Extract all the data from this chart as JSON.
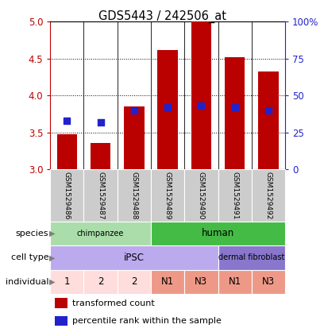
{
  "title": "GDS5443 / 242506_at",
  "samples": [
    "GSM1529486",
    "GSM1529487",
    "GSM1529488",
    "GSM1529489",
    "GSM1529490",
    "GSM1529491",
    "GSM1529492"
  ],
  "transformed_counts": [
    3.48,
    3.36,
    3.85,
    4.62,
    5.0,
    4.52,
    4.33
  ],
  "percentile_ranks": [
    33,
    32,
    40,
    42,
    43,
    42,
    40
  ],
  "ylim_left": [
    3.0,
    5.0
  ],
  "ylim_right": [
    0,
    100
  ],
  "yticks_left": [
    3.0,
    3.5,
    4.0,
    4.5,
    5.0
  ],
  "yticks_right": [
    0,
    25,
    50,
    75,
    100
  ],
  "bar_color": "#bb0000",
  "dot_color": "#2222cc",
  "bar_bottom": 3.0,
  "species": [
    {
      "label": "chimpanzee",
      "start": 0,
      "end": 3,
      "color": "#aaddaa"
    },
    {
      "label": "human",
      "start": 3,
      "end": 7,
      "color": "#44bb44"
    }
  ],
  "cell_type": [
    {
      "label": "iPSC",
      "start": 0,
      "end": 5,
      "color": "#bbaaee"
    },
    {
      "label": "dermal fibroblast",
      "start": 5,
      "end": 7,
      "color": "#8877cc"
    }
  ],
  "individual": [
    {
      "label": "1",
      "start": 0,
      "end": 1,
      "color": "#ffdddd"
    },
    {
      "label": "2",
      "start": 1,
      "end": 2,
      "color": "#ffdddd"
    },
    {
      "label": "2",
      "start": 2,
      "end": 3,
      "color": "#ffdddd"
    },
    {
      "label": "N1",
      "start": 3,
      "end": 4,
      "color": "#ee9988"
    },
    {
      "label": "N3",
      "start": 4,
      "end": 5,
      "color": "#ee9988"
    },
    {
      "label": "N1",
      "start": 5,
      "end": 6,
      "color": "#ee9988"
    },
    {
      "label": "N3",
      "start": 6,
      "end": 7,
      "color": "#ee9988"
    }
  ],
  "row_labels": [
    "species",
    "cell type",
    "individual"
  ],
  "legend_items": [
    {
      "color": "#bb0000",
      "label": "transformed count"
    },
    {
      "color": "#2222cc",
      "label": "percentile rank within the sample"
    }
  ],
  "bar_width": 0.6,
  "dot_size": 28,
  "background_gray": "#cccccc",
  "right_axis_color": "#2222cc",
  "left_axis_color": "#bb0000"
}
